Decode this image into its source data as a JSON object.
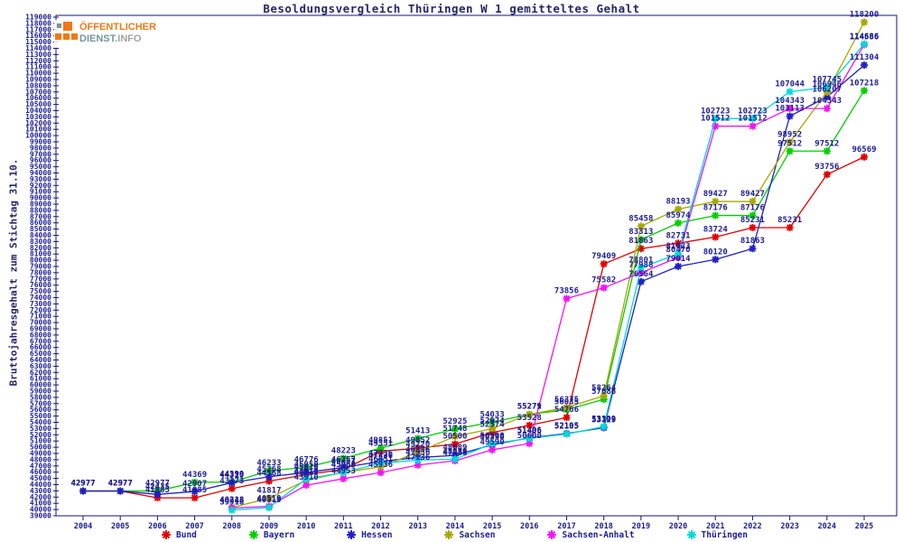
{
  "logo": {
    "brand_top": "ÖFFENTLICHER",
    "brand_bottom": "DIENST",
    "brand_suffix": ".INFO"
  },
  "title": "Besoldungsvergleich Thüringen W 1 gemitteltes Gehalt",
  "y_axis_title": "Bruttojahresgehalt zum Stichtag 31.10.",
  "axis_color": "#15157a",
  "label_color": "#1c1c96",
  "chart_data": {
    "type": "line",
    "title": "Besoldungsvergleich Thüringen W 1 gemitteltes Gehalt",
    "xlabel": "",
    "ylabel": "Bruttojahresgehalt zum Stichtag 31.10.",
    "x": [
      2004,
      2005,
      2006,
      2007,
      2008,
      2009,
      2010,
      2011,
      2012,
      2013,
      2014,
      2015,
      2016,
      2017,
      2018,
      2019,
      2020,
      2021,
      2022,
      2023,
      2024,
      2025
    ],
    "ylim": [
      39000,
      119000
    ],
    "y_tick_step": 1000,
    "grid": false,
    "legend_position": "bottom",
    "point_labels": true,
    "series": [
      {
        "name": "Bund",
        "color": "#e10000",
        "values": [
          42977,
          42977,
          41885,
          41885,
          43373,
          44568,
          45610,
          46457,
          49351,
          49852,
          50500,
          52374,
          53528,
          54766,
          79409,
          81863,
          82731,
          83724,
          85231,
          85231,
          93756,
          96569
        ]
      },
      {
        "name": "Bayern",
        "color": "#00cf00",
        "values": [
          42977,
          42977,
          42977,
          44369,
          44399,
          46233,
          46776,
          48223,
          49851,
          51413,
          52925,
          54033,
          55271,
          56035,
          57686,
          83313,
          85974,
          87176,
          87176,
          97512,
          97512,
          107218
        ]
      },
      {
        "name": "Hessen",
        "color": "#1f1fc8",
        "values": [
          42977,
          42977,
          42435,
          42907,
          44310,
          45268,
          45950,
          46757,
          47736,
          48336,
          48689,
          50390,
          51496,
          52195,
          53129,
          76564,
          79014,
          80120,
          81863,
          103113,
          106207,
          111304
        ]
      },
      {
        "name": "Sachsen",
        "color": "#a8a800",
        "values": [
          null,
          null,
          null,
          null,
          40318,
          41817,
          44710,
          45966,
          46851,
          49220,
          51748,
          52974,
          55279,
          56375,
          58264,
          85458,
          88193,
          89427,
          89427,
          98952,
          106946,
          118200
        ]
      },
      {
        "name": "Sachsen-Anhalt",
        "color": "#f214f2",
        "values": [
          null,
          null,
          null,
          null,
          40248,
          40519,
          43910,
          44953,
          45936,
          47136,
          47836,
          49590,
          50600,
          73856,
          75582,
          77988,
          80470,
          101512,
          101512,
          104343,
          104343,
          114586
        ]
      },
      {
        "name": "Thüringen",
        "color": "#00d9d9",
        "values": [
          null,
          null,
          null,
          null,
          39918,
          40319,
          44910,
          45953,
          47436,
          47936,
          48089,
          50590,
          51406,
          52105,
          53309,
          78801,
          81023,
          102723,
          102723,
          107044,
          107745,
          114686
        ]
      }
    ]
  }
}
